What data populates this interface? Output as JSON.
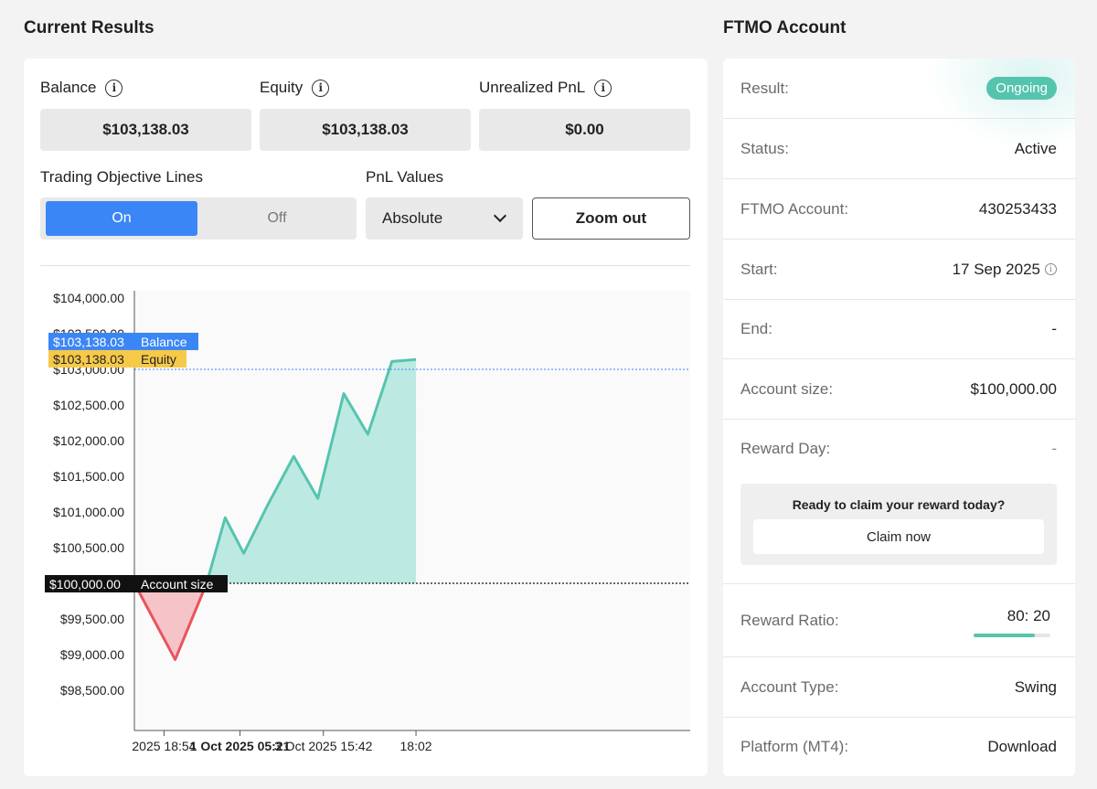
{
  "left_title": "Current Results",
  "right_title": "FTMO Account",
  "stats": [
    {
      "label": "Balance",
      "value": "$103,138.03"
    },
    {
      "label": "Equity",
      "value": "$103,138.03"
    },
    {
      "label": "Unrealized PnL",
      "value": "$0.00"
    }
  ],
  "controls": {
    "objective_label": "Trading Objective Lines",
    "on_label": "On",
    "off_label": "Off",
    "pnl_label": "PnL Values",
    "pnl_selected": "Absolute",
    "zoom_label": "Zoom out"
  },
  "chart_data": {
    "type": "line",
    "y_ticks": [
      "$104,000.00",
      "$103,500.00",
      "$103,000.00",
      "$102,500.00",
      "$102,000.00",
      "$101,500.00",
      "$101,000.00",
      "$100,500.00",
      "$100,000.00",
      "$99,500.00",
      "$99,000.00",
      "$98,500.00"
    ],
    "ylim": [
      98000,
      104000
    ],
    "x_ticks": [
      "2025 18:54",
      "1 Oct 2025 05:21",
      "3 Oct 2025 15:42",
      "18:02"
    ],
    "x_ticks_bold": [
      false,
      true,
      false,
      false
    ],
    "x_index_range": [
      0,
      15
    ],
    "series_values": [
      100000,
      98930,
      100000,
      100920,
      100420,
      101100,
      101780,
      101190,
      102660,
      102090,
      103110,
      103138.03
    ],
    "series_x": [
      0,
      1.1,
      1.95,
      2.45,
      2.95,
      3.6,
      4.3,
      4.95,
      5.65,
      6.3,
      6.95,
      7.6
    ],
    "balance": {
      "label": "Balance",
      "value": "$103,138.03",
      "level": 103180,
      "color": "#3b86f7"
    },
    "equity": {
      "label": "Equity",
      "value": "$103,138.03",
      "level": 103000,
      "color": "#f7c948"
    },
    "account_size": {
      "label": "Account size",
      "value": "$100,000.00",
      "level": 100000
    },
    "line_color": "#55c4ae",
    "area_pos_color": "#bde9e3",
    "area_neg_color": "#f6c4c8",
    "line_neg_color": "#e8545c"
  },
  "account": {
    "result_label": "Result:",
    "result_value": "Ongoing",
    "status_label": "Status:",
    "status_value": "Active",
    "account_label": "FTMO Account:",
    "account_value": "430253433",
    "start_label": "Start:",
    "start_value": "17 Sep 2025",
    "end_label": "End:",
    "end_value": "-",
    "size_label": "Account size:",
    "size_value": "$100,000.00",
    "reward_day_label": "Reward Day:",
    "reward_day_value": "-",
    "claim_text": "Ready to claim your reward today?",
    "claim_button": "Claim now",
    "ratio_label": "Reward Ratio:",
    "ratio_value": "80: 20",
    "ratio_fraction": 0.8,
    "type_label": "Account Type:",
    "type_value": "Swing",
    "platform_label": "Platform (MT4):",
    "platform_value": "Download"
  }
}
